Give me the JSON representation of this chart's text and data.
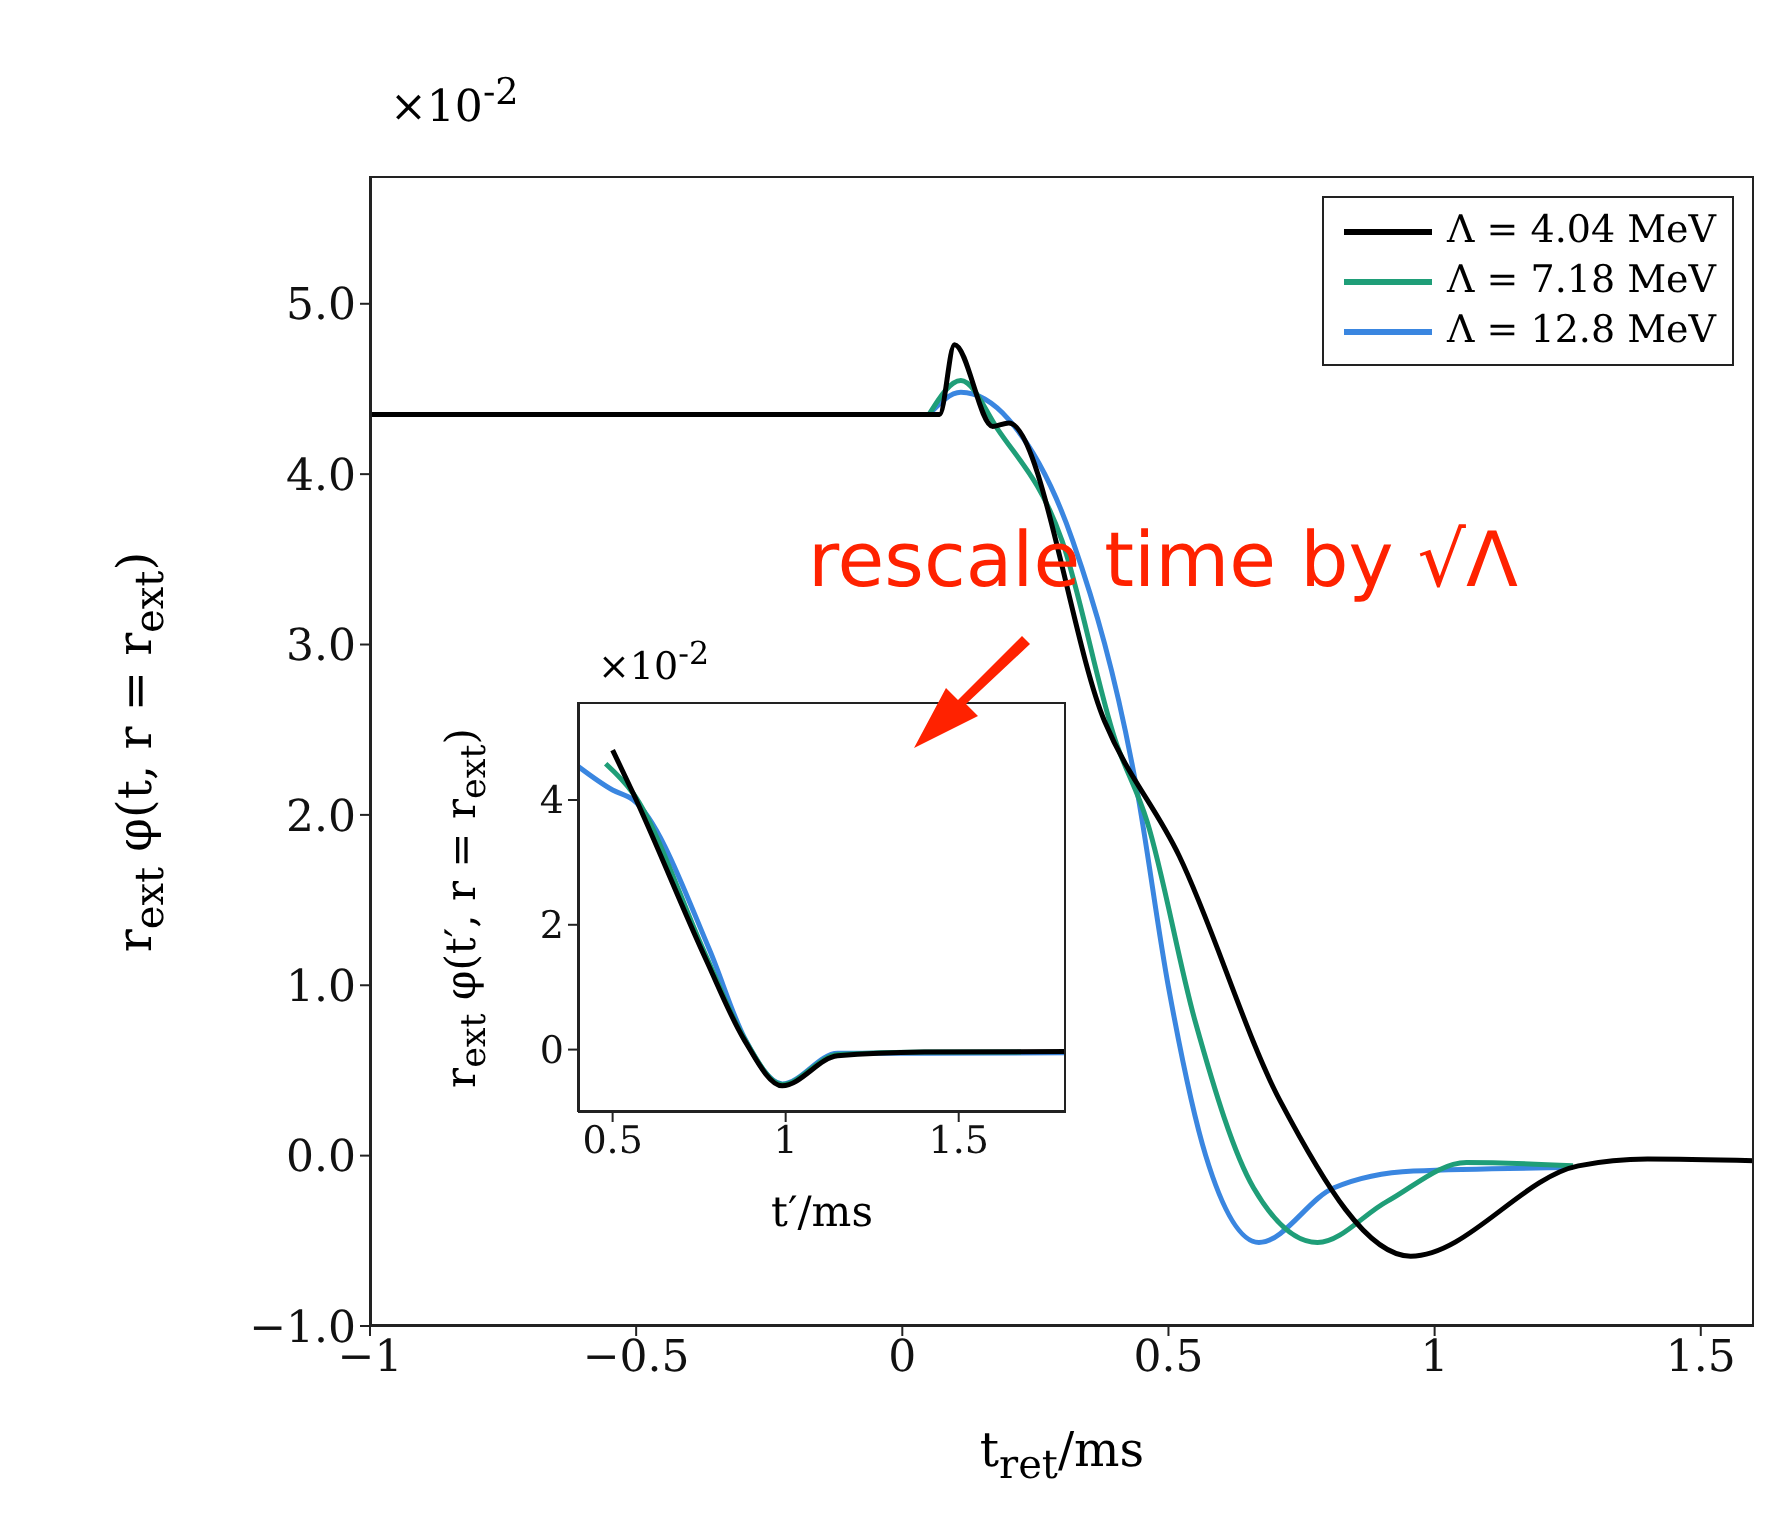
{
  "chart_data": [
    {
      "type": "line",
      "xlabel": "t$_{ret}$/ms",
      "ylabel": "r$_{ext}$ φ(t, r = r$_{ext}$)",
      "annotations": [
        "×10$^{-2}$",
        "rescale time by √Λ"
      ],
      "xlim": [
        -1,
        1.6
      ],
      "xticks": [
        {
          "value": -1,
          "label": "−1"
        },
        {
          "value": -0.5,
          "label": "−0.5"
        },
        0,
        0.5,
        1,
        1.5
      ],
      "ylim": [
        -1,
        5.75
      ],
      "yticks": [
        {
          "value": -1,
          "label": "−1.0"
        },
        {
          "value": 0,
          "label": "0.0"
        },
        {
          "value": 1,
          "label": "1.0"
        },
        {
          "value": 2,
          "label": "2.0"
        },
        {
          "value": 3,
          "label": "3.0"
        },
        {
          "value": 4,
          "label": "4.0"
        },
        {
          "value": 5,
          "label": "5.0"
        }
      ],
      "legend": "top right",
      "series": [
        {
          "name": "Λ = 12.8 MeV",
          "color": "#3a86e0",
          "x": [
            0.05,
            0.11,
            0.2,
            0.32,
            0.44,
            0.5,
            0.57,
            0.67,
            0.81,
            0.96,
            1.26
          ],
          "values": [
            4.35,
            4.48,
            4.32,
            3.61,
            2.16,
            0.99,
            0,
            -0.51,
            -0.19,
            -0.09,
            -0.07
          ]
        },
        {
          "name": "Λ = 7.18 MeV",
          "color": "#1f9e78",
          "x": [
            0.05,
            0.11,
            0.18,
            0.3,
            0.4,
            0.46,
            0.55,
            0.66,
            0.78,
            0.91,
            1.06,
            1.26
          ],
          "values": [
            4.35,
            4.55,
            4.26,
            3.61,
            2.44,
            1.96,
            0.79,
            -0.19,
            -0.51,
            -0.27,
            -0.04,
            -0.06
          ]
        },
        {
          "name": "Λ = 4.04 MeV",
          "color": "#000000",
          "x": [
            -1,
            0.07,
            0.098,
            0.17,
            0.2,
            0.38,
            0.52,
            0.71,
            0.955,
            1.27,
            1.4,
            1.6
          ],
          "values": [
            4.35,
            4.35,
            4.76,
            4.28,
            4.3,
            2.55,
            1.76,
            0.32,
            -0.59,
            -0.06,
            -0.02,
            -0.03
          ]
        }
      ]
    },
    {
      "type": "line",
      "xlabel": "t′/ms",
      "ylabel": "r$_{ext}$ φ(t′, r = r$_{ext}$)",
      "annotations": [
        "×10$^{-2}$"
      ],
      "xlim": [
        0.4,
        1.81
      ],
      "xticks": [
        0.5,
        1,
        1.5
      ],
      "ylim": [
        -1,
        5.57
      ],
      "yticks": [
        0,
        2,
        4
      ],
      "series": [
        {
          "color": "#3a86e0",
          "x": [
            0.4,
            0.5,
            0.56,
            0.78,
            0.88,
            0.99,
            1.15,
            1.4,
            1.81
          ],
          "values": [
            4.54,
            4.16,
            4,
            1.6,
            0.2,
            -0.55,
            -0.06,
            -0.06,
            -0.05
          ]
        },
        {
          "color": "#1f9e78",
          "x": [
            0.48,
            0.56,
            0.77,
            0.88,
            0.99,
            1.15,
            1.4,
            1.68
          ],
          "values": [
            4.58,
            4.1,
            1.5,
            0.18,
            -0.56,
            -0.08,
            -0.04,
            -0.04
          ]
        },
        {
          "color": "#000000",
          "x": [
            0.5,
            0.56,
            0.77,
            0.88,
            0.99,
            1.15,
            1.4,
            1.81
          ],
          "values": [
            4.8,
            4.1,
            1.44,
            0.16,
            -0.58,
            -0.1,
            -0.04,
            -0.03
          ]
        }
      ]
    }
  ]
}
